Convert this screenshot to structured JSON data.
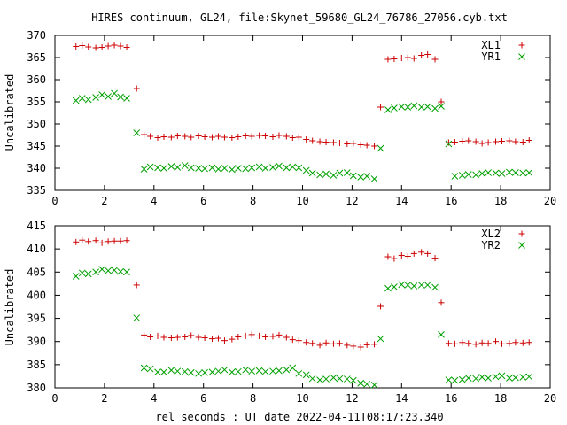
{
  "title": "HIRES continuum, GL24, file:Skynet_59680_GL24_76786_27056.cyb.txt",
  "xlabel": "rel seconds : UT date 2022-04-11T08:17:23.340",
  "colors": {
    "series_1": "#cc0000",
    "series_2": "#00a000",
    "axes": "#000000"
  },
  "chart_data": [
    {
      "type": "scatter",
      "ylabel": "Uncalibrated",
      "xlim": [
        0,
        20
      ],
      "ylim": [
        335,
        370
      ],
      "xticks": [
        0,
        2,
        4,
        6,
        8,
        10,
        12,
        14,
        16,
        18,
        20
      ],
      "yticks": [
        335,
        340,
        345,
        350,
        355,
        360,
        365,
        370
      ],
      "legend_position": "top-right",
      "series": [
        {
          "name": "XL1",
          "marker": "plus",
          "x": [
            0.85,
            1.1,
            1.35,
            1.65,
            1.9,
            2.15,
            2.4,
            2.65,
            2.9,
            3.3,
            3.6,
            3.85,
            4.15,
            4.4,
            4.7,
            4.95,
            5.25,
            5.5,
            5.8,
            6.05,
            6.35,
            6.6,
            6.85,
            7.15,
            7.4,
            7.7,
            7.95,
            8.25,
            8.5,
            8.8,
            9.05,
            9.35,
            9.6,
            9.85,
            10.15,
            10.4,
            10.7,
            10.95,
            11.25,
            11.5,
            11.8,
            12.05,
            12.35,
            12.6,
            12.9,
            13.15,
            13.45,
            13.7,
            14.0,
            14.25,
            14.5,
            14.8,
            15.05,
            15.35,
            15.6,
            15.9,
            16.15,
            16.45,
            16.7,
            17.0,
            17.25,
            17.5,
            17.8,
            18.05,
            18.35,
            18.6,
            18.9,
            19.15
          ],
          "y": [
            367.5,
            367.7,
            367.4,
            367.2,
            367.3,
            367.6,
            367.8,
            367.6,
            367.3,
            358.0,
            347.6,
            347.2,
            346.9,
            347.1,
            347.0,
            347.3,
            347.2,
            347.0,
            347.3,
            347.1,
            347.0,
            347.2,
            347.0,
            346.9,
            347.1,
            347.3,
            347.2,
            347.4,
            347.3,
            347.1,
            347.4,
            347.2,
            346.9,
            347.0,
            346.5,
            346.2,
            346.0,
            345.9,
            345.8,
            345.7,
            345.5,
            345.6,
            345.3,
            345.2,
            345.0,
            353.8,
            364.6,
            364.7,
            364.9,
            365.0,
            364.8,
            365.5,
            365.7,
            364.6,
            355.0,
            345.8,
            345.9,
            346.1,
            346.2,
            346.0,
            345.6,
            345.8,
            346.0,
            346.1,
            346.2,
            346.0,
            345.9,
            346.3
          ]
        },
        {
          "name": "YR1",
          "marker": "cross",
          "x": [
            0.85,
            1.1,
            1.35,
            1.65,
            1.9,
            2.15,
            2.4,
            2.65,
            2.9,
            3.3,
            3.6,
            3.85,
            4.15,
            4.4,
            4.7,
            4.95,
            5.25,
            5.5,
            5.8,
            6.05,
            6.35,
            6.6,
            6.85,
            7.15,
            7.4,
            7.7,
            7.95,
            8.25,
            8.5,
            8.8,
            9.05,
            9.35,
            9.6,
            9.85,
            10.15,
            10.4,
            10.7,
            10.95,
            11.25,
            11.5,
            11.8,
            12.05,
            12.35,
            12.6,
            12.9,
            13.15,
            13.45,
            13.7,
            14.0,
            14.25,
            14.5,
            14.8,
            15.05,
            15.35,
            15.6,
            15.9,
            16.15,
            16.45,
            16.7,
            17.0,
            17.25,
            17.5,
            17.8,
            18.05,
            18.35,
            18.6,
            18.9,
            19.15
          ],
          "y": [
            355.3,
            355.8,
            355.5,
            356.0,
            356.6,
            356.2,
            356.9,
            356.1,
            355.8,
            348.0,
            339.8,
            340.3,
            340.1,
            340.0,
            340.4,
            340.2,
            340.6,
            340.1,
            340.0,
            339.9,
            340.1,
            339.8,
            340.0,
            339.7,
            340.0,
            339.9,
            340.1,
            340.3,
            340.0,
            340.2,
            340.5,
            340.1,
            340.3,
            340.1,
            339.5,
            338.9,
            338.5,
            338.7,
            338.4,
            338.9,
            339.0,
            338.3,
            338.0,
            338.2,
            337.6,
            344.5,
            353.2,
            353.6,
            353.9,
            353.8,
            354.1,
            353.8,
            353.9,
            353.5,
            354.0,
            345.5,
            338.2,
            338.4,
            338.6,
            338.5,
            338.8,
            339.0,
            338.9,
            338.8,
            339.1,
            339.0,
            338.9,
            339.0
          ]
        }
      ]
    },
    {
      "type": "scatter",
      "ylabel": "Uncalibrated",
      "xlim": [
        0,
        20
      ],
      "ylim": [
        380,
        415
      ],
      "xticks": [
        0,
        2,
        4,
        6,
        8,
        10,
        12,
        14,
        16,
        18,
        20
      ],
      "yticks": [
        380,
        385,
        390,
        395,
        400,
        405,
        410,
        415
      ],
      "legend_position": "top-right",
      "series": [
        {
          "name": "XL2",
          "marker": "plus",
          "x": [
            0.85,
            1.1,
            1.35,
            1.65,
            1.9,
            2.15,
            2.4,
            2.65,
            2.9,
            3.3,
            3.6,
            3.85,
            4.15,
            4.4,
            4.7,
            4.95,
            5.25,
            5.5,
            5.8,
            6.05,
            6.35,
            6.6,
            6.85,
            7.15,
            7.4,
            7.7,
            7.95,
            8.25,
            8.5,
            8.8,
            9.05,
            9.35,
            9.6,
            9.85,
            10.15,
            10.4,
            10.7,
            10.95,
            11.25,
            11.5,
            11.8,
            12.05,
            12.35,
            12.6,
            12.9,
            13.15,
            13.45,
            13.7,
            14.0,
            14.25,
            14.5,
            14.8,
            15.05,
            15.35,
            15.6,
            15.9,
            16.15,
            16.45,
            16.7,
            17.0,
            17.25,
            17.5,
            17.8,
            18.05,
            18.35,
            18.6,
            18.9,
            19.15
          ],
          "y": [
            411.5,
            411.9,
            411.6,
            411.8,
            411.3,
            411.6,
            411.7,
            411.7,
            411.8,
            402.2,
            391.4,
            391.0,
            391.2,
            390.9,
            390.8,
            390.9,
            391.0,
            391.3,
            390.9,
            390.8,
            390.6,
            390.7,
            390.2,
            390.5,
            391.0,
            391.2,
            391.5,
            391.2,
            391.0,
            391.1,
            391.4,
            390.9,
            390.4,
            390.2,
            389.8,
            389.6,
            389.2,
            389.7,
            389.5,
            389.6,
            389.2,
            389.0,
            388.8,
            389.3,
            389.4,
            397.6,
            408.3,
            407.9,
            408.6,
            408.4,
            409.0,
            409.3,
            409.0,
            408.0,
            398.4,
            389.6,
            389.5,
            389.8,
            389.6,
            389.4,
            389.7,
            389.6,
            390.0,
            389.5,
            389.6,
            389.8,
            389.7,
            389.8
          ]
        },
        {
          "name": "YR2",
          "marker": "cross",
          "x": [
            0.85,
            1.1,
            1.35,
            1.65,
            1.9,
            2.15,
            2.4,
            2.65,
            2.9,
            3.3,
            3.6,
            3.85,
            4.15,
            4.4,
            4.7,
            4.95,
            5.25,
            5.5,
            5.8,
            6.05,
            6.35,
            6.6,
            6.85,
            7.15,
            7.4,
            7.7,
            7.95,
            8.25,
            8.5,
            8.8,
            9.05,
            9.35,
            9.6,
            9.85,
            10.15,
            10.4,
            10.7,
            10.95,
            11.25,
            11.5,
            11.8,
            12.05,
            12.35,
            12.6,
            12.9,
            13.15,
            13.45,
            13.7,
            14.0,
            14.25,
            14.5,
            14.8,
            15.05,
            15.35,
            15.6,
            15.9,
            16.15,
            16.45,
            16.7,
            17.0,
            17.25,
            17.5,
            17.8,
            18.05,
            18.35,
            18.6,
            18.9,
            19.15
          ],
          "y": [
            404.1,
            404.8,
            404.6,
            405.0,
            405.6,
            405.3,
            405.4,
            405.1,
            405.0,
            395.1,
            384.3,
            384.1,
            383.4,
            383.4,
            383.8,
            383.6,
            383.5,
            383.3,
            383.1,
            383.3,
            383.4,
            383.6,
            383.9,
            383.4,
            383.5,
            383.9,
            383.6,
            383.7,
            383.5,
            383.6,
            383.7,
            383.9,
            384.3,
            383.1,
            382.8,
            382.0,
            381.7,
            381.9,
            382.2,
            382.0,
            381.9,
            381.6,
            381.0,
            380.8,
            380.6,
            390.6,
            401.5,
            401.8,
            402.3,
            402.2,
            402.0,
            402.2,
            402.2,
            401.7,
            391.5,
            381.7,
            381.6,
            381.8,
            382.1,
            382.0,
            382.3,
            382.1,
            382.4,
            382.6,
            382.1,
            382.2,
            382.3,
            382.4
          ]
        }
      ]
    }
  ]
}
